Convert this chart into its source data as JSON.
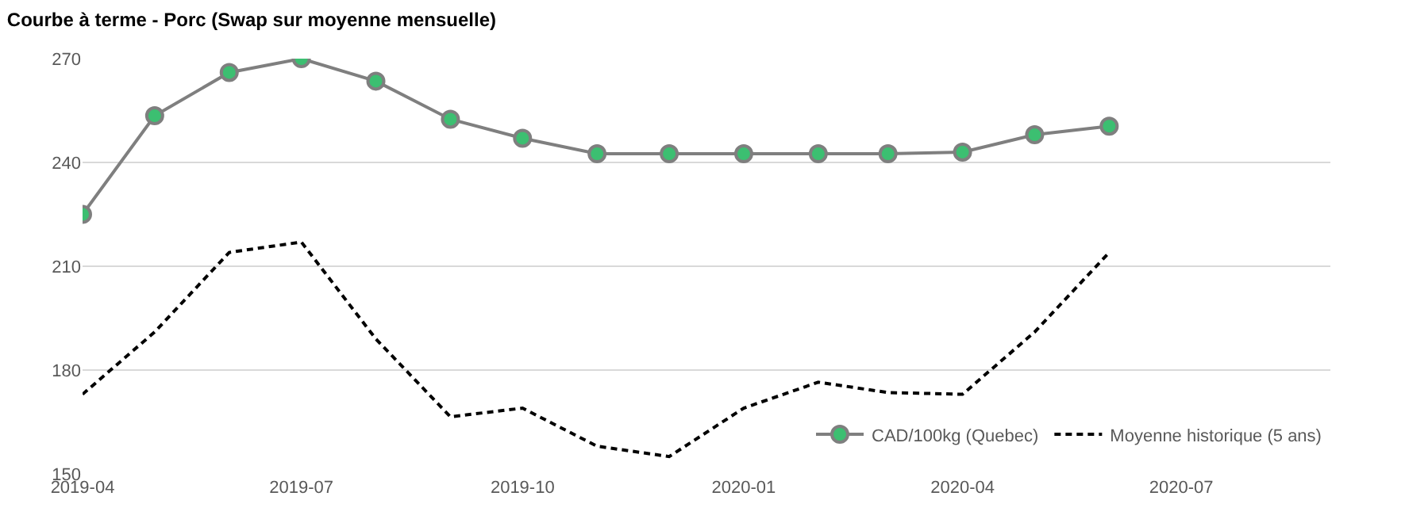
{
  "chart_data": {
    "type": "line",
    "title": "Courbe à terme - Porc (Swap sur moyenne mensuelle)",
    "x": [
      "2019-04",
      "2019-05",
      "2019-06",
      "2019-07",
      "2019-08",
      "2019-09",
      "2019-10",
      "2019-11",
      "2019-12",
      "2020-01",
      "2020-02",
      "2020-03",
      "2020-04",
      "2020-05",
      "2020-06"
    ],
    "series": [
      {
        "name": "CAD/100kg (Quebec)",
        "color": "#7f7f7f",
        "marker": "circle",
        "colors": [
          "#3cbf71",
          "#3cbf71",
          "#3cbf71",
          "#3cbf71",
          "#3cbf71",
          "#3cbf71",
          "#3cbf71",
          "#3cbf71",
          "#3cbf71",
          "#3cbf71",
          "#3cbf71",
          "#3cbf71",
          "#3cbf71",
          "#3cbf71",
          "#3cbf71"
        ],
        "line_style": "solid",
        "values": [
          225,
          253.5,
          266,
          270,
          263.5,
          252.5,
          247,
          242.5,
          242.5,
          242.5,
          242.5,
          242.5,
          243,
          248,
          250.5
        ]
      },
      {
        "name": "Moyenne historique (5 ans)",
        "color": "#000000",
        "marker": "none",
        "line_style": "dashed",
        "values": [
          173,
          191,
          214,
          217,
          189,
          166.5,
          169,
          158,
          155,
          169,
          176.5,
          173.5,
          173,
          191,
          214
        ]
      }
    ],
    "xlim": [
      "2019-04",
      "2020-09"
    ],
    "xticks": [
      {
        "value": "2019-04",
        "label": "2019-04"
      },
      {
        "value": "2019-07",
        "label": "2019-07"
      },
      {
        "value": "2019-10",
        "label": "2019-10"
      },
      {
        "value": "2020-01",
        "label": "2020-01"
      },
      {
        "value": "2020-04",
        "label": "2020-04"
      },
      {
        "value": "2020-07",
        "label": "2020-07"
      }
    ],
    "ylim": [
      150,
      270
    ],
    "yticks": [
      150,
      180,
      210,
      240,
      270
    ],
    "grid": "y",
    "legend": "bottom right"
  }
}
